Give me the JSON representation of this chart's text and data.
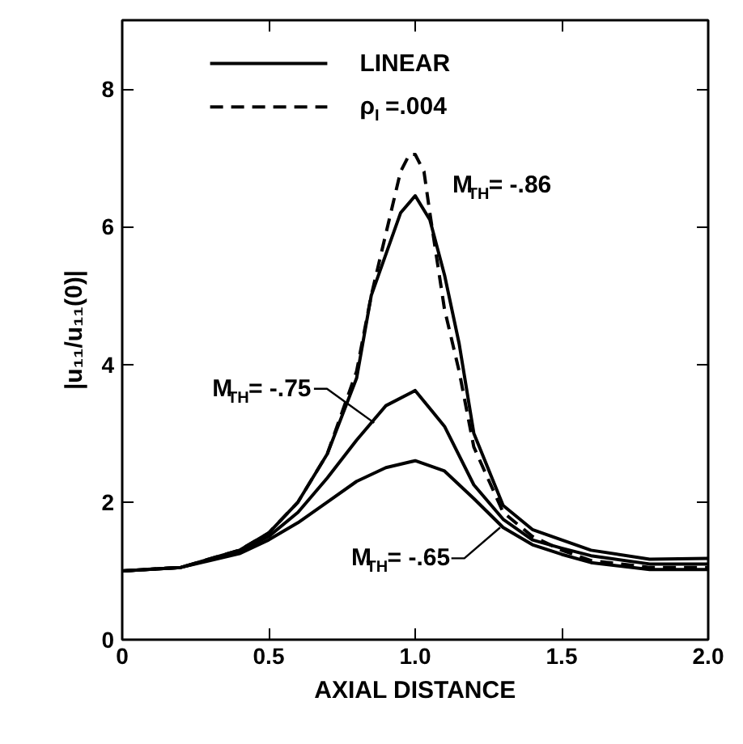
{
  "chart_data": {
    "type": "line",
    "xlabel": "AXIAL DISTANCE",
    "ylabel": "|u₁₁/u₁₁(0)|",
    "xlim": [
      0,
      2.0
    ],
    "ylim": [
      0,
      9
    ],
    "xticks": [
      0,
      0.5,
      {
        "value": 1.0,
        "label": "1.0"
      },
      1.5,
      {
        "value": 2.0,
        "label": "2.0"
      }
    ],
    "yticks": [
      0,
      2,
      4,
      6,
      8
    ],
    "grid": false,
    "legend": "top left",
    "series": [
      {
        "name": "LINEAR",
        "color": "#000000",
        "line_style": "solid",
        "x": [
          0,
          0.2,
          0.4,
          0.5,
          0.6,
          0.7,
          0.8,
          0.85,
          0.9,
          0.95,
          1.0,
          1.05,
          1.1,
          1.15,
          1.2,
          1.3,
          1.4,
          1.5,
          1.6,
          1.8,
          2.0
        ],
        "values": [
          1.0,
          1.05,
          1.3,
          1.55,
          2.0,
          2.7,
          3.8,
          5.0,
          5.6,
          6.2,
          6.45,
          6.1,
          5.3,
          4.3,
          3.0,
          1.95,
          1.6,
          1.45,
          1.3,
          1.17,
          1.18
        ]
      },
      {
        "color": "#000000",
        "line_style": "solid",
        "x": [
          0,
          0.2,
          0.4,
          0.5,
          0.6,
          0.7,
          0.8,
          0.9,
          1.0,
          1.1,
          1.2,
          1.3,
          1.4,
          1.5,
          1.6,
          1.8,
          2.0
        ],
        "values": [
          1.0,
          1.05,
          1.28,
          1.5,
          1.85,
          2.35,
          2.9,
          3.4,
          3.62,
          3.1,
          2.25,
          1.75,
          1.45,
          1.33,
          1.22,
          1.1,
          1.1
        ]
      },
      {
        "color": "#000000",
        "line_style": "solid",
        "x": [
          0,
          0.2,
          0.4,
          0.5,
          0.6,
          0.7,
          0.8,
          0.9,
          1.0,
          1.1,
          1.2,
          1.3,
          1.4,
          1.5,
          1.6,
          1.8,
          2.0
        ],
        "values": [
          1.0,
          1.05,
          1.25,
          1.45,
          1.7,
          2.0,
          2.3,
          2.5,
          2.6,
          2.45,
          2.05,
          1.63,
          1.38,
          1.24,
          1.12,
          1.02,
          1.02
        ]
      },
      {
        "name": "ρ$_{I}$ =.004",
        "color": "#000000",
        "line_style": "dashed",
        "x": [
          0,
          0.2,
          0.4,
          0.5,
          0.6,
          0.7,
          0.8,
          0.85,
          0.9,
          0.95,
          0.98,
          1.0,
          1.03,
          1.05,
          1.1,
          1.15,
          1.2,
          1.3,
          1.4,
          1.5,
          1.6,
          1.8,
          2.0
        ],
        "values": [
          1.0,
          1.05,
          1.3,
          1.55,
          2.0,
          2.7,
          3.9,
          5.0,
          5.9,
          6.8,
          7.05,
          7.05,
          6.8,
          6.2,
          4.8,
          3.9,
          2.8,
          1.85,
          1.5,
          1.3,
          1.15,
          1.05,
          1.05
        ]
      }
    ],
    "annotations": [
      {
        "text": "M$_{TH}$= -.86",
        "x": 1.05,
        "y": 6.2
      },
      {
        "text": "M$_{TH}$= -.75",
        "x": 0.86,
        "y": 3.15
      },
      {
        "text": "M$_{TH}$= -.65",
        "x": 1.29,
        "y": 1.63
      }
    ]
  }
}
